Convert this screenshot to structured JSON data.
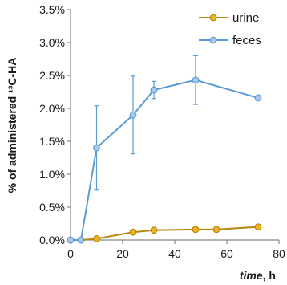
{
  "chart_data": {
    "type": "line",
    "title": "",
    "ylabel": "% of administered ¹³C-HA",
    "xlabel": {
      "main": "time",
      "suffix": ", h"
    },
    "xlim": [
      0,
      80
    ],
    "ylim": [
      0,
      0.035
    ],
    "xticks": [
      0,
      20,
      40,
      60,
      80
    ],
    "xtick_labels": [
      "0",
      "20",
      "40",
      "60",
      "80"
    ],
    "yticks": [
      0,
      0.005,
      0.01,
      0.015,
      0.02,
      0.025,
      0.03,
      0.035
    ],
    "ytick_labels": [
      "0.0%",
      "0.5%",
      "1.0%",
      "1.5%",
      "2.0%",
      "2.5%",
      "3.0%",
      "3.5%"
    ],
    "grid": false,
    "legend_position": "top-right",
    "series": [
      {
        "name": "urine",
        "color": "#f0b323",
        "edge_color": "#b8860b",
        "x": [
          0,
          4,
          10,
          24,
          32,
          48,
          56,
          72
        ],
        "y": [
          0.0,
          0.0,
          0.0002,
          0.0012,
          0.0015,
          0.0016,
          0.0016,
          0.002
        ]
      },
      {
        "name": "feces",
        "color": "#a8c8ec",
        "edge_color": "#5b9bd5",
        "x": [
          0,
          4,
          10,
          24,
          32,
          48,
          72
        ],
        "y": [
          0.0,
          0.0,
          0.014,
          0.019,
          0.0228,
          0.0243,
          0.0216
        ],
        "error": [
          0,
          0,
          0.0064,
          0.0059,
          0.0013,
          0.0037,
          0
        ]
      }
    ]
  }
}
